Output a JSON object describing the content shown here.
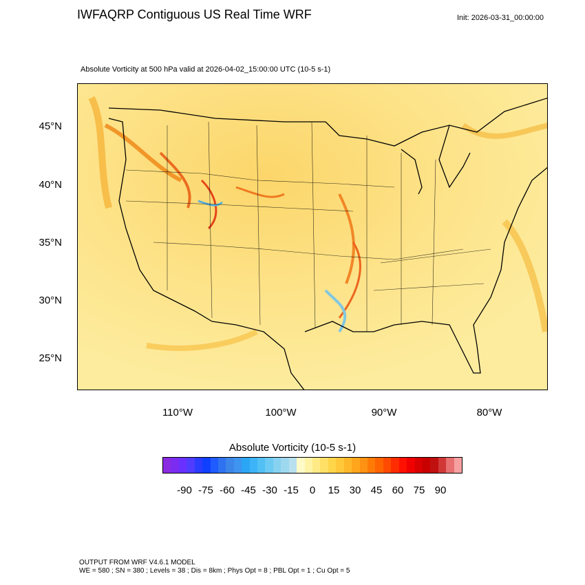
{
  "header": {
    "title": "IWFAQRP Contiguous US Real Time WRF",
    "init": "Init: 2026-03-31_00:00:00",
    "subtitle": "Absolute Vorticity at 500 hPa valid at 2026-04-02_15:00:00 UTC   (10-5 s-1)"
  },
  "map": {
    "lat_labels": [
      "45°N",
      "40°N",
      "35°N",
      "30°N",
      "25°N"
    ],
    "lon_labels": [
      "110°W",
      "100°W",
      "90°W",
      "80°W"
    ]
  },
  "colorbar": {
    "title": "Absolute Vorticity  (10-5 s-1)",
    "labels": [
      "-90",
      "-75",
      "-60",
      "-45",
      "-30",
      "-15",
      "0",
      "15",
      "30",
      "45",
      "60",
      "75",
      "90"
    ],
    "colors": [
      "#8a2be2",
      "#7b2cf0",
      "#6a30ff",
      "#4f3cff",
      "#2a3cff",
      "#1040ff",
      "#1f5bff",
      "#2f72f0",
      "#3b86e8",
      "#3f94f0",
      "#2aa6f5",
      "#3cb4f7",
      "#52c0f5",
      "#6ccaf3",
      "#86d2f0",
      "#9ed8ef",
      "#b8e0ee",
      "#fffbc8",
      "#fff3a6",
      "#ffea86",
      "#ffe066",
      "#ffd54a",
      "#ffc83a",
      "#ffb82a",
      "#ffa61c",
      "#ff9212",
      "#ff7b08",
      "#ff6400",
      "#ff4a00",
      "#ff2c00",
      "#ff1000",
      "#f00000",
      "#d80000",
      "#c80000",
      "#c01010",
      "#d03838",
      "#e87070",
      "#f8a0a0"
    ]
  },
  "footer": {
    "line1": "OUTPUT FROM WRF V4.6.1 MODEL",
    "line2": "WE = 580 ; SN = 380 ; Levels = 38 ; Dis = 8km ; Phys Opt = 8 ; PBL Opt = 1 ; Cu Opt = 5"
  }
}
